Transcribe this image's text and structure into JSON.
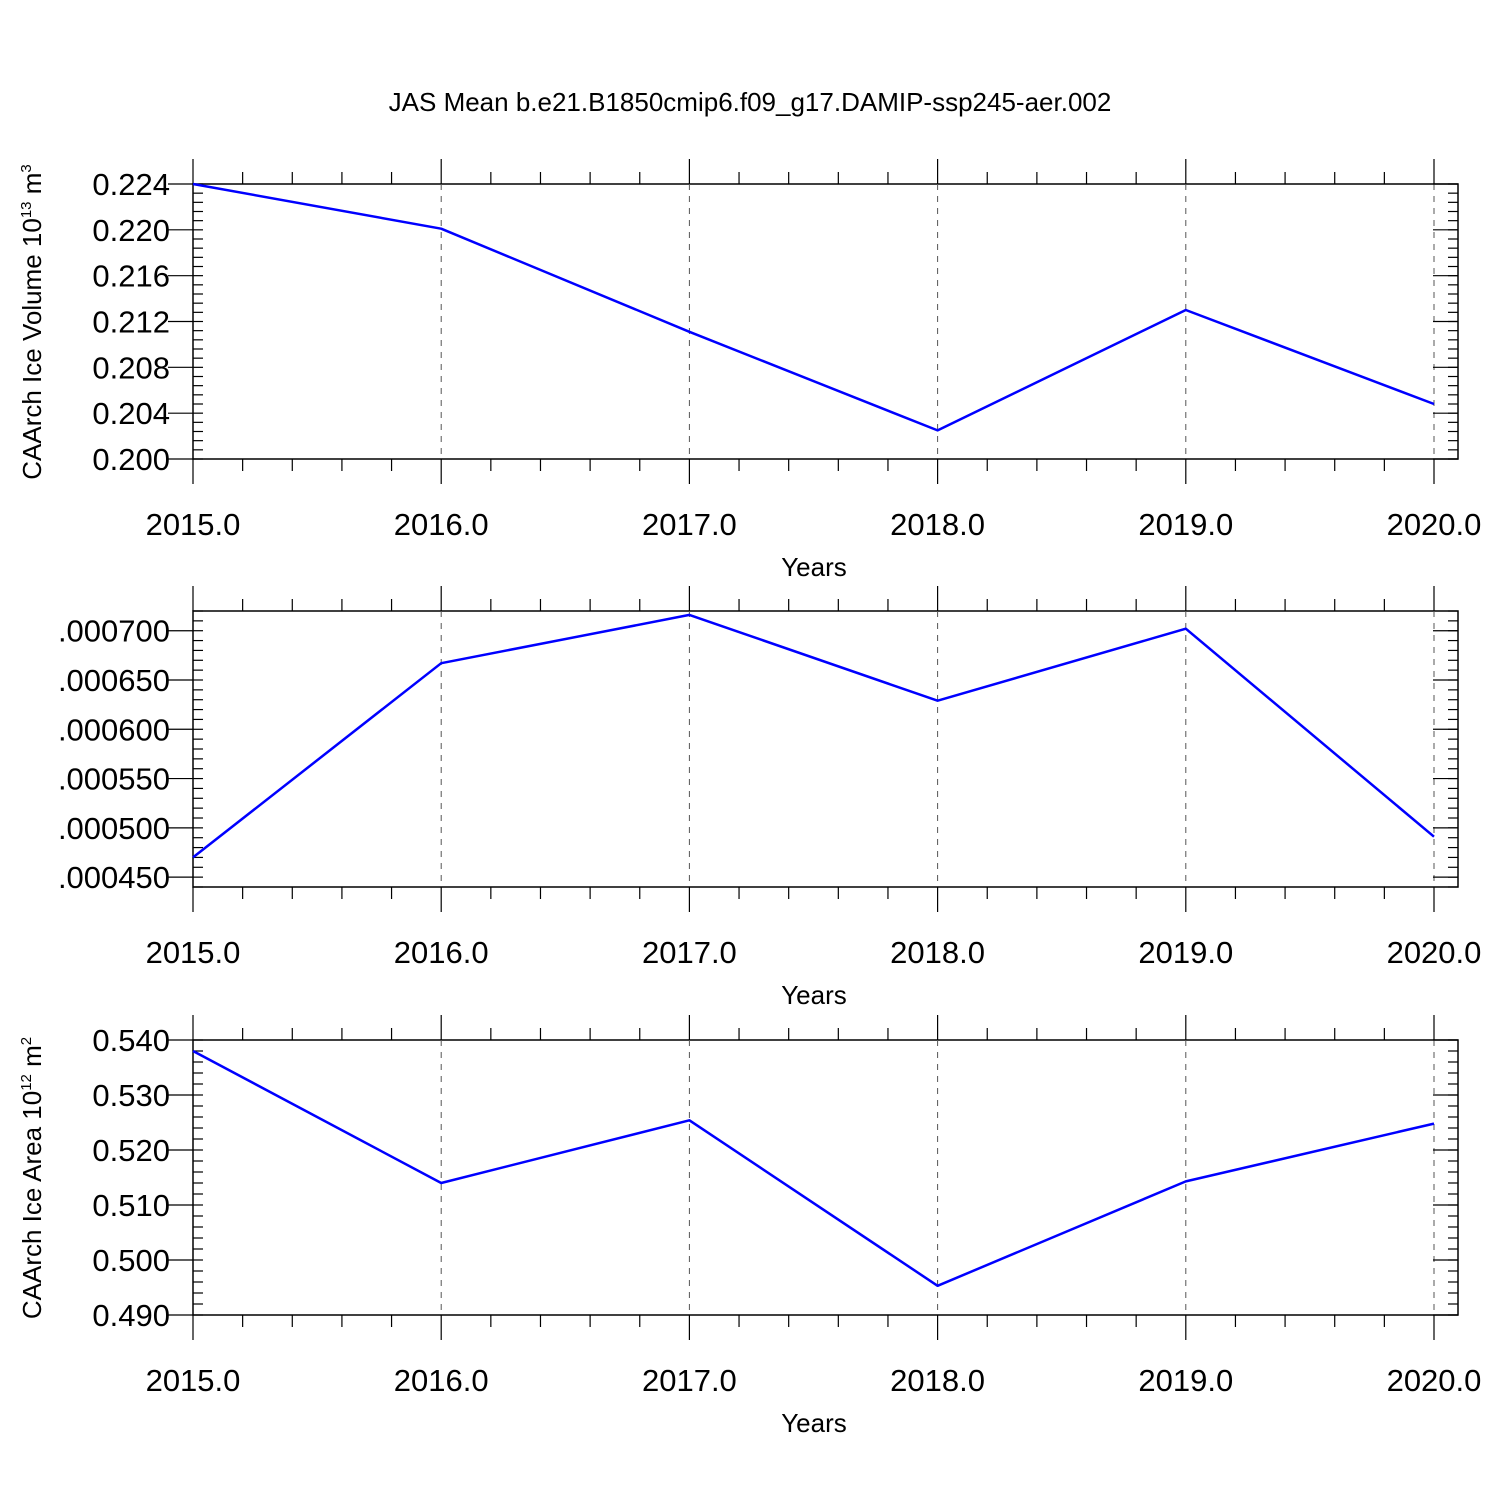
{
  "title": "JAS Mean b.e21.B1850cmip6.f09_g17.DAMIP-ssp245-aer.002",
  "colors": {
    "line": "#0000ff",
    "axis": "#000000",
    "grid": "#555555"
  },
  "chart_data": [
    {
      "type": "line",
      "xlabel": "Years",
      "ylabel": "CAArch Ice Volume 10",
      "ylabel_sup1": "13",
      "ylabel_mid": " m",
      "ylabel_sup2": "3",
      "x": [
        2015,
        2016,
        2017,
        2018,
        2019,
        2020
      ],
      "x_tick_labels": [
        "2015.0",
        "2016.0",
        "2017.0",
        "2018.0",
        "2019.0",
        "2020.0"
      ],
      "xlim": [
        2015,
        2020.1
      ],
      "ylim": [
        0.2,
        0.224
      ],
      "y_ticks": [
        0.2,
        0.204,
        0.208,
        0.212,
        0.216,
        0.22,
        0.224
      ],
      "y_tick_labels": [
        "0.200",
        "0.204",
        "0.208",
        "0.212",
        "0.216",
        "0.220",
        "0.224"
      ],
      "series": [
        {
          "values": [
            0.224,
            0.2201,
            0.2111,
            0.2025,
            0.213,
            0.2048
          ]
        }
      ]
    },
    {
      "type": "line",
      "xlabel": "Years",
      "ylabel": "",
      "x": [
        2015,
        2016,
        2017,
        2018,
        2019,
        2020
      ],
      "x_tick_labels": [
        "2015.0",
        "2016.0",
        "2017.0",
        "2018.0",
        "2019.0",
        "2020.0"
      ],
      "xlim": [
        2015,
        2020.1
      ],
      "ylim": [
        0.00044,
        0.00072
      ],
      "y_ticks": [
        0.00045,
        0.0005,
        0.00055,
        0.0006,
        0.00065,
        0.0007
      ],
      "y_tick_labels": [
        ".000450",
        ".000500",
        ".000550",
        ".000600",
        ".000650",
        ".000700"
      ],
      "series": [
        {
          "values": [
            0.00047,
            0.000667,
            0.000716,
            0.000629,
            0.000702,
            0.000491
          ]
        }
      ]
    },
    {
      "type": "line",
      "xlabel": "Years",
      "ylabel": "CAArch Ice Area 10",
      "ylabel_sup1": "12",
      "ylabel_mid": " m",
      "ylabel_sup2": "2",
      "x": [
        2015,
        2016,
        2017,
        2018,
        2019,
        2020
      ],
      "x_tick_labels": [
        "2015.0",
        "2016.0",
        "2017.0",
        "2018.0",
        "2019.0",
        "2020.0"
      ],
      "xlim": [
        2015,
        2020.1
      ],
      "ylim": [
        0.49,
        0.54
      ],
      "y_ticks": [
        0.49,
        0.5,
        0.51,
        0.52,
        0.53,
        0.54
      ],
      "y_tick_labels": [
        "0.490",
        "0.500",
        "0.510",
        "0.520",
        "0.530",
        "0.540"
      ],
      "series": [
        {
          "values": [
            0.538,
            0.514,
            0.5254,
            0.4953,
            0.5143,
            0.5248
          ]
        }
      ]
    }
  ]
}
